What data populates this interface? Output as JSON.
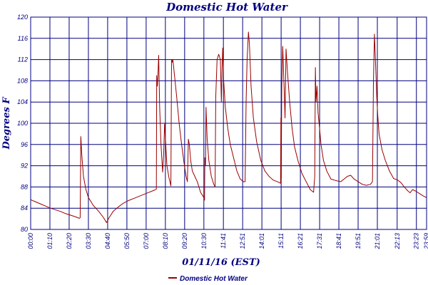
{
  "chart_data": {
    "type": "line",
    "title": "Domestic Hot Water",
    "xlabel": "01/11/16 (EST)",
    "ylabel": "Degrees F",
    "ylim": [
      80,
      120
    ],
    "y_ticks": [
      80,
      84,
      88,
      92,
      96,
      100,
      104,
      108,
      112,
      116,
      120
    ],
    "x_range_hours": [
      0,
      24
    ],
    "x_ticks": [
      {
        "label": "00:00",
        "h": 0
      },
      {
        "label": "01:10",
        "h": 1.1667
      },
      {
        "label": "02:20",
        "h": 2.3333
      },
      {
        "label": "03:30",
        "h": 3.5
      },
      {
        "label": "04:40",
        "h": 4.6667
      },
      {
        "label": "05:50",
        "h": 5.8333
      },
      {
        "label": "07:00",
        "h": 7.0
      },
      {
        "label": "08:10",
        "h": 8.1667
      },
      {
        "label": "09:20",
        "h": 9.3333
      },
      {
        "label": "10:30",
        "h": 10.5
      },
      {
        "label": "11:41",
        "h": 11.6833
      },
      {
        "label": "12:51",
        "h": 12.85
      },
      {
        "label": "14:01",
        "h": 14.0167
      },
      {
        "label": "15:11",
        "h": 15.1833
      },
      {
        "label": "16:21",
        "h": 16.35
      },
      {
        "label": "17:31",
        "h": 17.5167
      },
      {
        "label": "18:41",
        "h": 18.6833
      },
      {
        "label": "19:51",
        "h": 19.85
      },
      {
        "label": "21:01",
        "h": 21.0167
      },
      {
        "label": "22:13",
        "h": 22.2167
      },
      {
        "label": "23:23",
        "h": 23.3833
      },
      {
        "label": "23:59",
        "h": 24.0
      }
    ],
    "legend_position": "bottom-center",
    "grid": true,
    "series": [
      {
        "name": "Domestic Hot Water",
        "color": "#990000",
        "points": [
          [
            0.0,
            85.6
          ],
          [
            0.3,
            85.2
          ],
          [
            0.6,
            84.8
          ],
          [
            0.9,
            84.4
          ],
          [
            1.2,
            84.0
          ],
          [
            1.5,
            83.7
          ],
          [
            1.8,
            83.4
          ],
          [
            2.1,
            83.0
          ],
          [
            2.4,
            82.7
          ],
          [
            2.7,
            82.4
          ],
          [
            2.95,
            82.1
          ],
          [
            3.0,
            82.2
          ],
          [
            3.04,
            97.5
          ],
          [
            3.1,
            94.0
          ],
          [
            3.2,
            90.0
          ],
          [
            3.35,
            87.5
          ],
          [
            3.5,
            86.0
          ],
          [
            3.8,
            84.5
          ],
          [
            4.1,
            83.5
          ],
          [
            4.4,
            82.3
          ],
          [
            4.6,
            81.3
          ],
          [
            4.75,
            82.2
          ],
          [
            5.0,
            83.4
          ],
          [
            5.3,
            84.2
          ],
          [
            5.6,
            84.9
          ],
          [
            5.9,
            85.4
          ],
          [
            6.3,
            85.9
          ],
          [
            6.7,
            86.4
          ],
          [
            7.1,
            86.9
          ],
          [
            7.5,
            87.4
          ],
          [
            7.62,
            87.6
          ],
          [
            7.64,
            109.0
          ],
          [
            7.68,
            107.0
          ],
          [
            7.72,
            109.5
          ],
          [
            7.76,
            112.8
          ],
          [
            7.82,
            103.0
          ],
          [
            7.9,
            96.0
          ],
          [
            8.0,
            90.8
          ],
          [
            8.06,
            94.0
          ],
          [
            8.12,
            100.0
          ],
          [
            8.18,
            96.5
          ],
          [
            8.26,
            92.0
          ],
          [
            8.38,
            89.8
          ],
          [
            8.5,
            88.2
          ],
          [
            8.54,
            112.0
          ],
          [
            8.58,
            111.5
          ],
          [
            8.62,
            112.0
          ],
          [
            8.72,
            109.0
          ],
          [
            8.85,
            105.0
          ],
          [
            9.0,
            100.0
          ],
          [
            9.15,
            96.0
          ],
          [
            9.3,
            92.5
          ],
          [
            9.42,
            90.0
          ],
          [
            9.5,
            89.0
          ],
          [
            9.56,
            97.0
          ],
          [
            9.62,
            96.0
          ],
          [
            9.7,
            93.0
          ],
          [
            9.8,
            91.0
          ],
          [
            9.95,
            90.0
          ],
          [
            10.1,
            89.0
          ],
          [
            10.3,
            87.0
          ],
          [
            10.5,
            86.0
          ],
          [
            10.54,
            85.5
          ],
          [
            10.56,
            93.5
          ],
          [
            10.6,
            92.0
          ],
          [
            10.63,
            103.0
          ],
          [
            10.7,
            97.0
          ],
          [
            10.8,
            93.0
          ],
          [
            10.95,
            90.0
          ],
          [
            11.1,
            88.5
          ],
          [
            11.18,
            88.0
          ],
          [
            11.22,
            105.0
          ],
          [
            11.3,
            112.0
          ],
          [
            11.4,
            113.0
          ],
          [
            11.5,
            112.0
          ],
          [
            11.56,
            104.0
          ],
          [
            11.6,
            110.0
          ],
          [
            11.64,
            114.2
          ],
          [
            11.7,
            108.0
          ],
          [
            11.8,
            103.0
          ],
          [
            11.95,
            99.0
          ],
          [
            12.1,
            96.0
          ],
          [
            12.3,
            93.5
          ],
          [
            12.5,
            91.0
          ],
          [
            12.7,
            89.5
          ],
          [
            12.9,
            89.0
          ],
          [
            13.0,
            89.0
          ],
          [
            13.06,
            104.0
          ],
          [
            13.12,
            112.0
          ],
          [
            13.2,
            117.2
          ],
          [
            13.26,
            115.0
          ],
          [
            13.36,
            107.0
          ],
          [
            13.5,
            101.0
          ],
          [
            13.7,
            96.5
          ],
          [
            13.95,
            93.0
          ],
          [
            14.2,
            91.0
          ],
          [
            14.45,
            90.0
          ],
          [
            14.7,
            89.3
          ],
          [
            14.95,
            89.0
          ],
          [
            15.15,
            88.7
          ],
          [
            15.17,
            101.0
          ],
          [
            15.19,
            89.5
          ],
          [
            15.22,
            107.0
          ],
          [
            15.28,
            114.5
          ],
          [
            15.36,
            107.0
          ],
          [
            15.42,
            101.0
          ],
          [
            15.48,
            114.0
          ],
          [
            15.56,
            110.0
          ],
          [
            15.7,
            104.0
          ],
          [
            15.85,
            99.0
          ],
          [
            16.0,
            95.5
          ],
          [
            16.2,
            93.0
          ],
          [
            16.45,
            90.5
          ],
          [
            16.7,
            89.0
          ],
          [
            16.95,
            87.5
          ],
          [
            17.15,
            87.0
          ],
          [
            17.22,
            90.0
          ],
          [
            17.26,
            110.5
          ],
          [
            17.3,
            104.0
          ],
          [
            17.36,
            107.0
          ],
          [
            17.42,
            102.0
          ],
          [
            17.5,
            99.5
          ],
          [
            17.6,
            96.0
          ],
          [
            17.75,
            93.0
          ],
          [
            17.95,
            91.0
          ],
          [
            18.2,
            89.5
          ],
          [
            18.5,
            89.2
          ],
          [
            18.8,
            89.0
          ],
          [
            19.0,
            89.5
          ],
          [
            19.2,
            90.0
          ],
          [
            19.4,
            90.2
          ],
          [
            19.6,
            89.5
          ],
          [
            19.85,
            89.0
          ],
          [
            20.1,
            88.5
          ],
          [
            20.35,
            88.3
          ],
          [
            20.6,
            88.5
          ],
          [
            20.72,
            89.0
          ],
          [
            20.78,
            108.0
          ],
          [
            20.84,
            116.8
          ],
          [
            20.9,
            112.0
          ],
          [
            20.98,
            105.0
          ],
          [
            21.04,
            101.5
          ],
          [
            21.12,
            98.0
          ],
          [
            21.3,
            95.0
          ],
          [
            21.5,
            93.0
          ],
          [
            21.75,
            91.0
          ],
          [
            22.0,
            89.6
          ],
          [
            22.25,
            89.3
          ],
          [
            22.45,
            88.8
          ],
          [
            22.65,
            88.0
          ],
          [
            22.85,
            87.3
          ],
          [
            23.0,
            86.9
          ],
          [
            23.15,
            87.5
          ],
          [
            23.35,
            87.2
          ],
          [
            23.6,
            86.7
          ],
          [
            23.8,
            86.3
          ],
          [
            24.0,
            86.0
          ]
        ]
      }
    ]
  }
}
